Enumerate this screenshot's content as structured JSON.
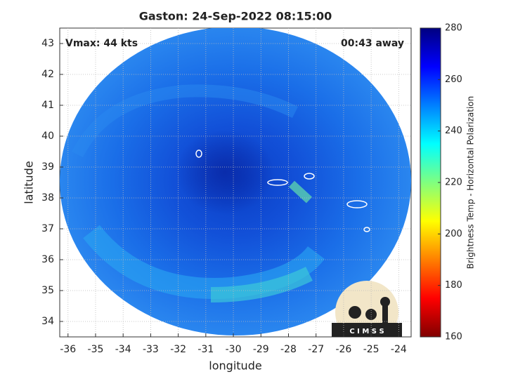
{
  "chart_data": {
    "type": "image",
    "title": "Gaston: 24-Sep-2022 08:15:00",
    "annotations": [
      "Vmax: 44 kts",
      "00:43 away"
    ],
    "xlabel": "longitude",
    "ylabel": "latitude",
    "xlim": [
      -36.3,
      -23.55
    ],
    "ylim": [
      33.5,
      43.5
    ],
    "xticks": [
      -36,
      -35,
      -34,
      -33,
      -32,
      -31,
      -30,
      -29,
      -28,
      -27,
      -26,
      -25,
      -24
    ],
    "yticks": [
      34,
      35,
      36,
      37,
      38,
      39,
      40,
      41,
      42,
      43
    ],
    "grid": true,
    "colorbar": {
      "label": "Brightness Temp - Horizontal Polarization",
      "clim": [
        160,
        280
      ],
      "ticks": [
        160,
        180,
        200,
        220,
        240,
        260,
        280
      ],
      "colormap": "jet"
    },
    "logo": "C I M S S"
  }
}
